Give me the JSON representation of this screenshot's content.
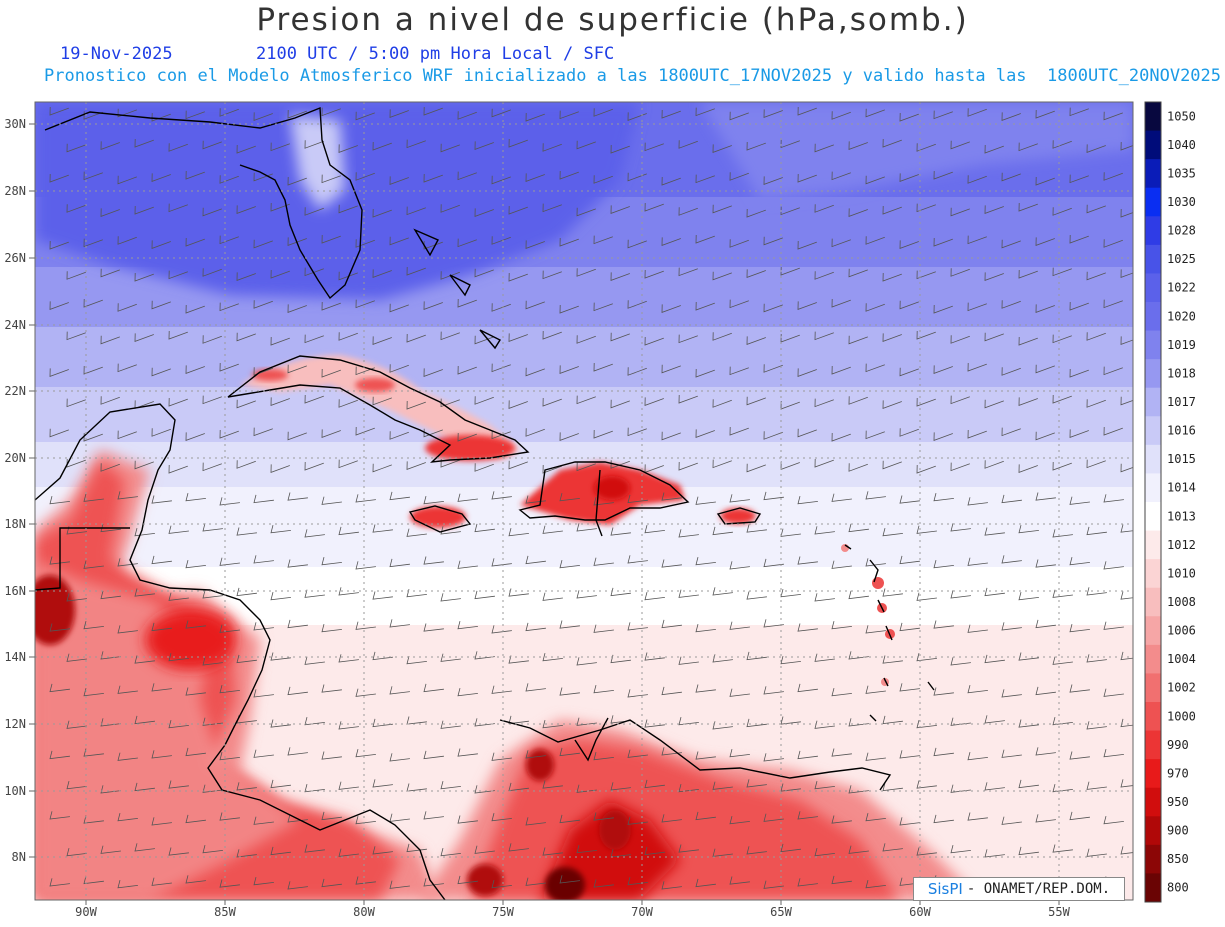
{
  "header": {
    "title": "Presion a nivel de superficie (hPa,somb.)",
    "date": "19-Nov-2025",
    "time": "2100 UTC / 5:00 pm Hora Local / SFC",
    "description": "Pronostico con el Modelo Atmosferico WRF inicializado a las 1800UTC_17NOV2025 y valido hasta las  1800UTC_20NOV2025"
  },
  "map": {
    "lat_labels": [
      "30N",
      "28N",
      "26N",
      "24N",
      "22N",
      "20N",
      "18N",
      "16N",
      "14N",
      "12N",
      "10N",
      "8N"
    ],
    "lon_labels": [
      "90W",
      "85W",
      "80W",
      "75W",
      "70W",
      "65W",
      "60W",
      "55W"
    ],
    "grid": true
  },
  "colorbar": {
    "levels": [
      "1050",
      "1040",
      "1035",
      "1030",
      "1028",
      "1025",
      "1022",
      "1020",
      "1019",
      "1018",
      "1017",
      "1016",
      "1015",
      "1014",
      "1013",
      "1012",
      "1010",
      "1008",
      "1006",
      "1004",
      "1002",
      "1000",
      "990",
      "970",
      "950",
      "900",
      "850",
      "800"
    ],
    "colors": [
      "#08083f",
      "#000c7a",
      "#0a1cb8",
      "#0a2ef2",
      "#2f3ce6",
      "#4853e8",
      "#5b61ea",
      "#6a6eec",
      "#7f82ee",
      "#9698f1",
      "#b1b3f4",
      "#c9caf7",
      "#e0e1fa",
      "#f1f1fd",
      "#ffffff",
      "#fdeaea",
      "#fbd4d4",
      "#f8bebe",
      "#f6a6a6",
      "#f38c8c",
      "#f17070",
      "#ee5252",
      "#ec3535",
      "#e81a1a",
      "#d10d0d",
      "#b00808",
      "#8c0606",
      "#6a0404"
    ]
  },
  "credit": {
    "logo": "SisPI",
    "text": "- ONAMET/REP.DOM."
  }
}
